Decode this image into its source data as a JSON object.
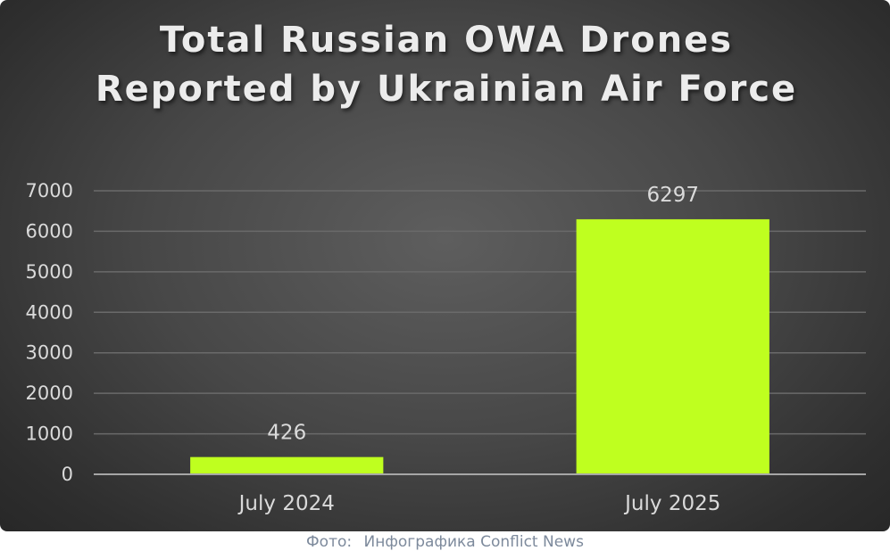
{
  "chart_data": {
    "type": "bar",
    "title": "Total Russian OWA Drones Reported by Ukrainian Air Force",
    "categories": [
      "July 2024",
      "July 2025"
    ],
    "values": [
      426,
      6297
    ],
    "data_labels": [
      "426",
      "6297"
    ],
    "ylim": [
      0,
      7000
    ],
    "yticks": [
      0,
      1000,
      2000,
      3000,
      4000,
      5000,
      6000,
      7000
    ],
    "grid": true,
    "legend": "none",
    "bar_color": "#bfff1f",
    "background_color": "#474747"
  },
  "caption": {
    "prefix": "Фото:",
    "credit": "Инфографика Conflict News"
  }
}
